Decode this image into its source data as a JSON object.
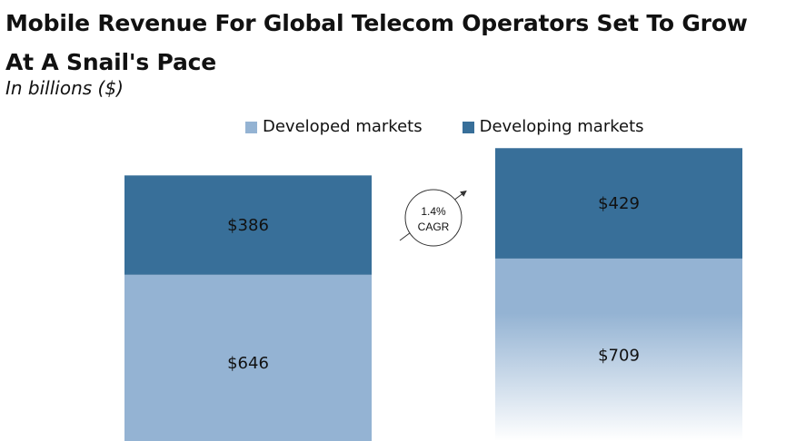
{
  "chart_data": {
    "type": "bar",
    "stacked": true,
    "title": "Mobile Revenue For Global Telecom Operators Set To Grow At A Snail's Pace",
    "subtitle": "In billions ($)",
    "categories": [
      "",
      ""
    ],
    "series": [
      {
        "name": "Developed markets",
        "values": [
          646,
          709
        ],
        "labels": [
          "$646",
          "$709"
        ],
        "color": "#94b3d3"
      },
      {
        "name": "Developing markets",
        "values": [
          386,
          429
        ],
        "labels": [
          "$386",
          "$429"
        ],
        "color": "#386f99"
      }
    ],
    "annotation": {
      "line1": "1.4%",
      "line2": "CAGR"
    },
    "legend_position": "top",
    "grid": false,
    "axes_visible": false
  }
}
